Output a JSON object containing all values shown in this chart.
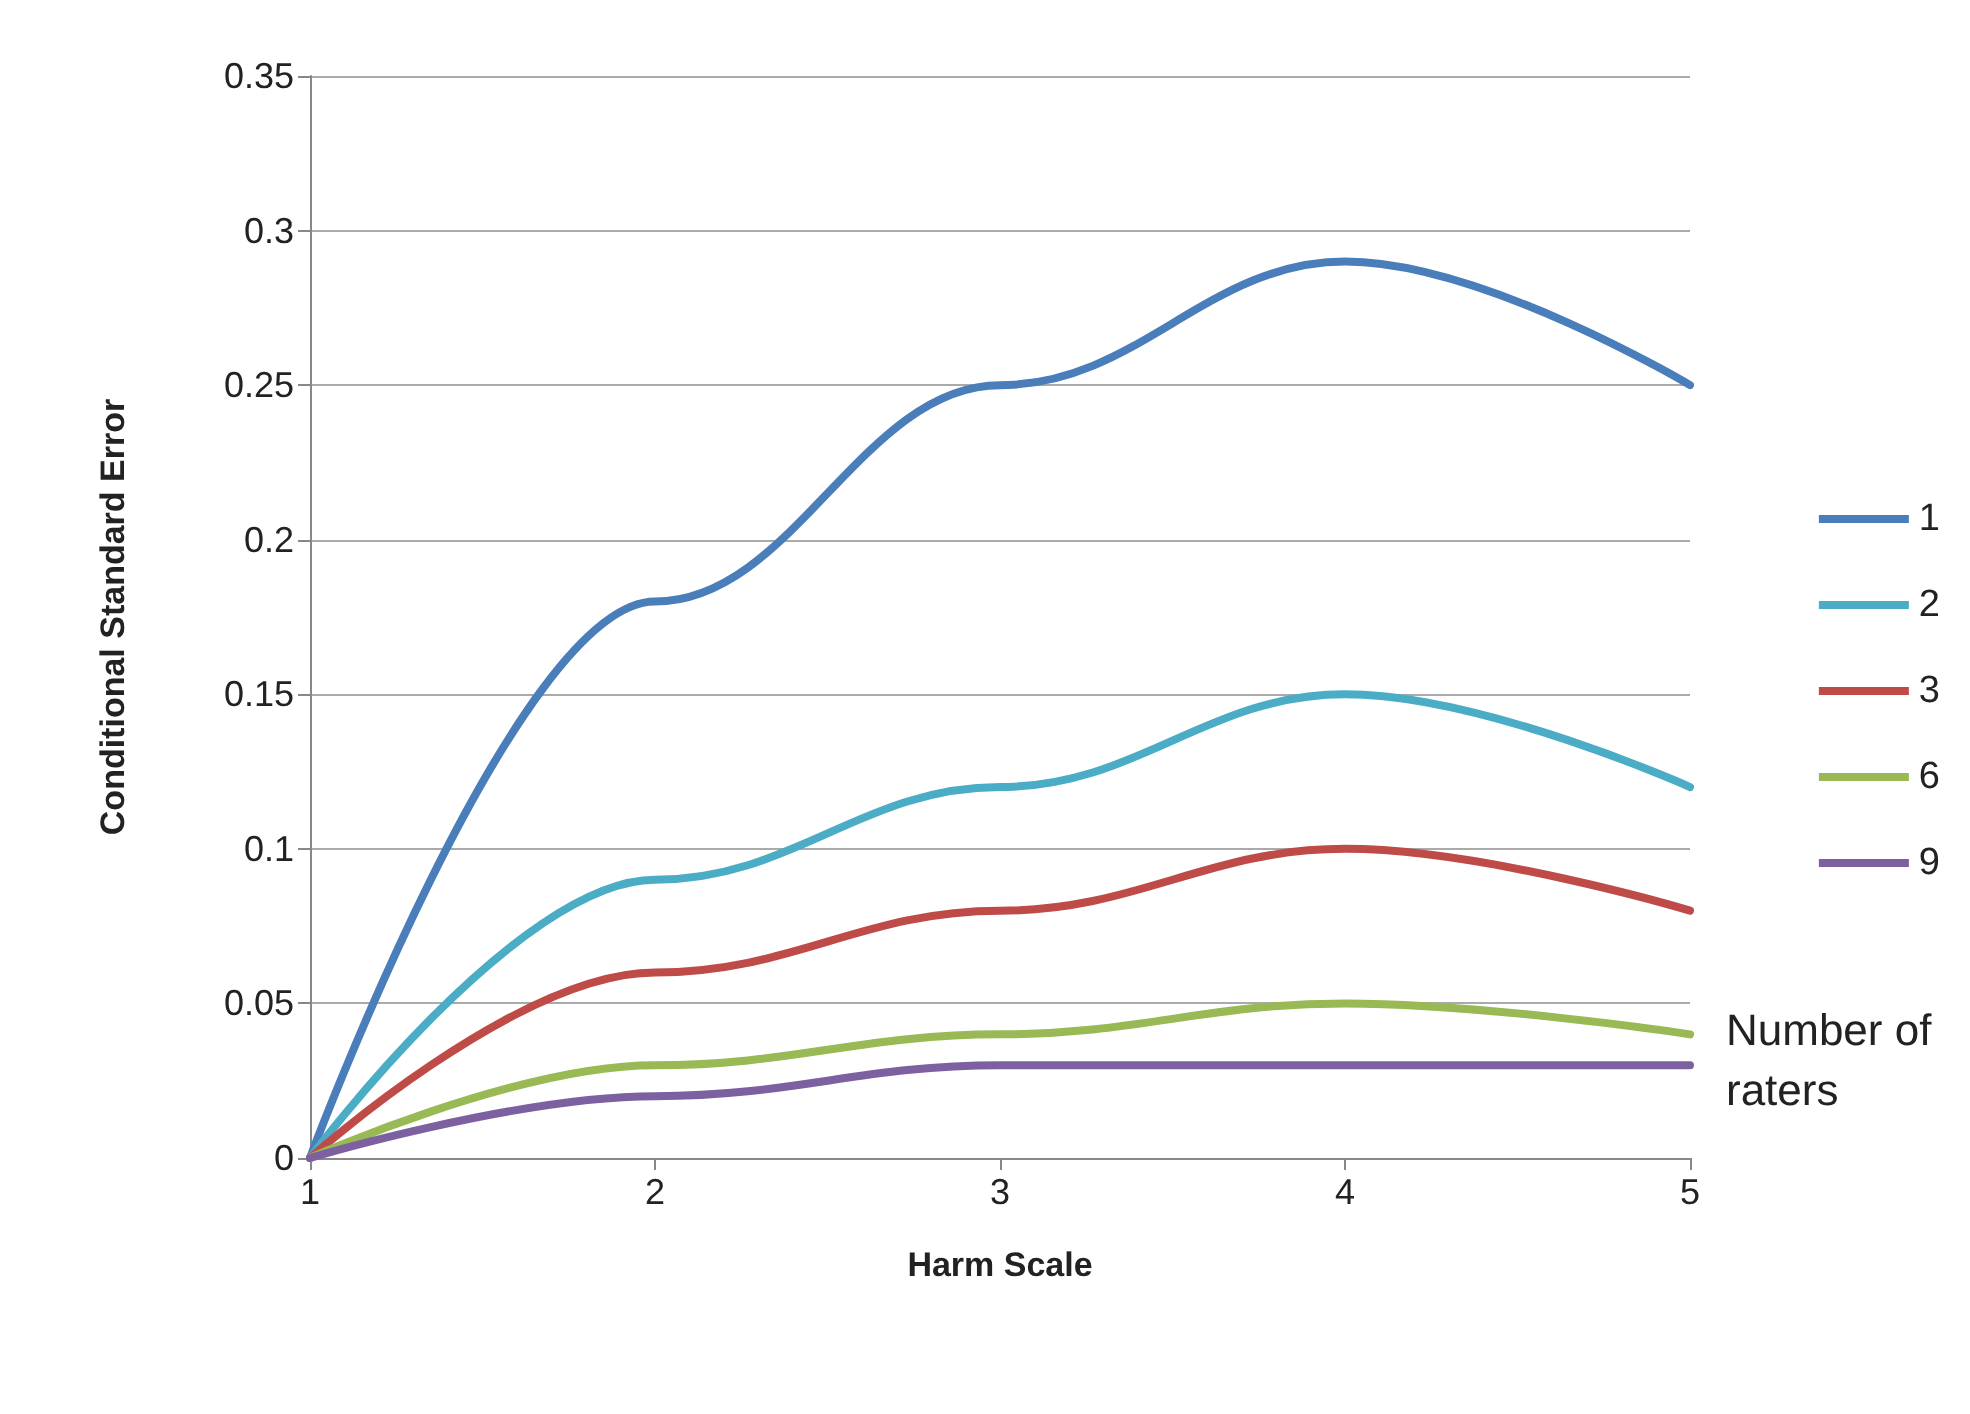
{
  "chart_data": {
    "type": "line",
    "xlabel": "Harm Scale",
    "ylabel": "Conditional Standard Error",
    "legend_title": "Number of raters",
    "x": [
      1,
      2,
      3,
      4,
      5
    ],
    "series": [
      {
        "name": "1",
        "color": "#4a7ebb",
        "values": [
          0,
          0.18,
          0.25,
          0.29,
          0.25
        ]
      },
      {
        "name": "2",
        "color": "#4bacc6",
        "values": [
          0,
          0.09,
          0.12,
          0.15,
          0.12
        ]
      },
      {
        "name": "3",
        "color": "#be4b48",
        "values": [
          0,
          0.06,
          0.08,
          0.1,
          0.08
        ]
      },
      {
        "name": "6",
        "color": "#98b954",
        "values": [
          0,
          0.03,
          0.04,
          0.05,
          0.04
        ]
      },
      {
        "name": "9",
        "color": "#7d60a0",
        "values": [
          0,
          0.02,
          0.03,
          0.03,
          0.03
        ]
      }
    ],
    "xlim": [
      1,
      5
    ],
    "xticks": [
      1,
      2,
      3,
      4,
      5
    ],
    "ylim": [
      0,
      0.35
    ],
    "yticks": [
      0,
      0.05,
      0.1,
      0.15,
      0.2,
      0.25,
      0.3,
      0.35
    ],
    "grid": "y",
    "legend": "right",
    "marker": "none",
    "line_style": "solid"
  }
}
